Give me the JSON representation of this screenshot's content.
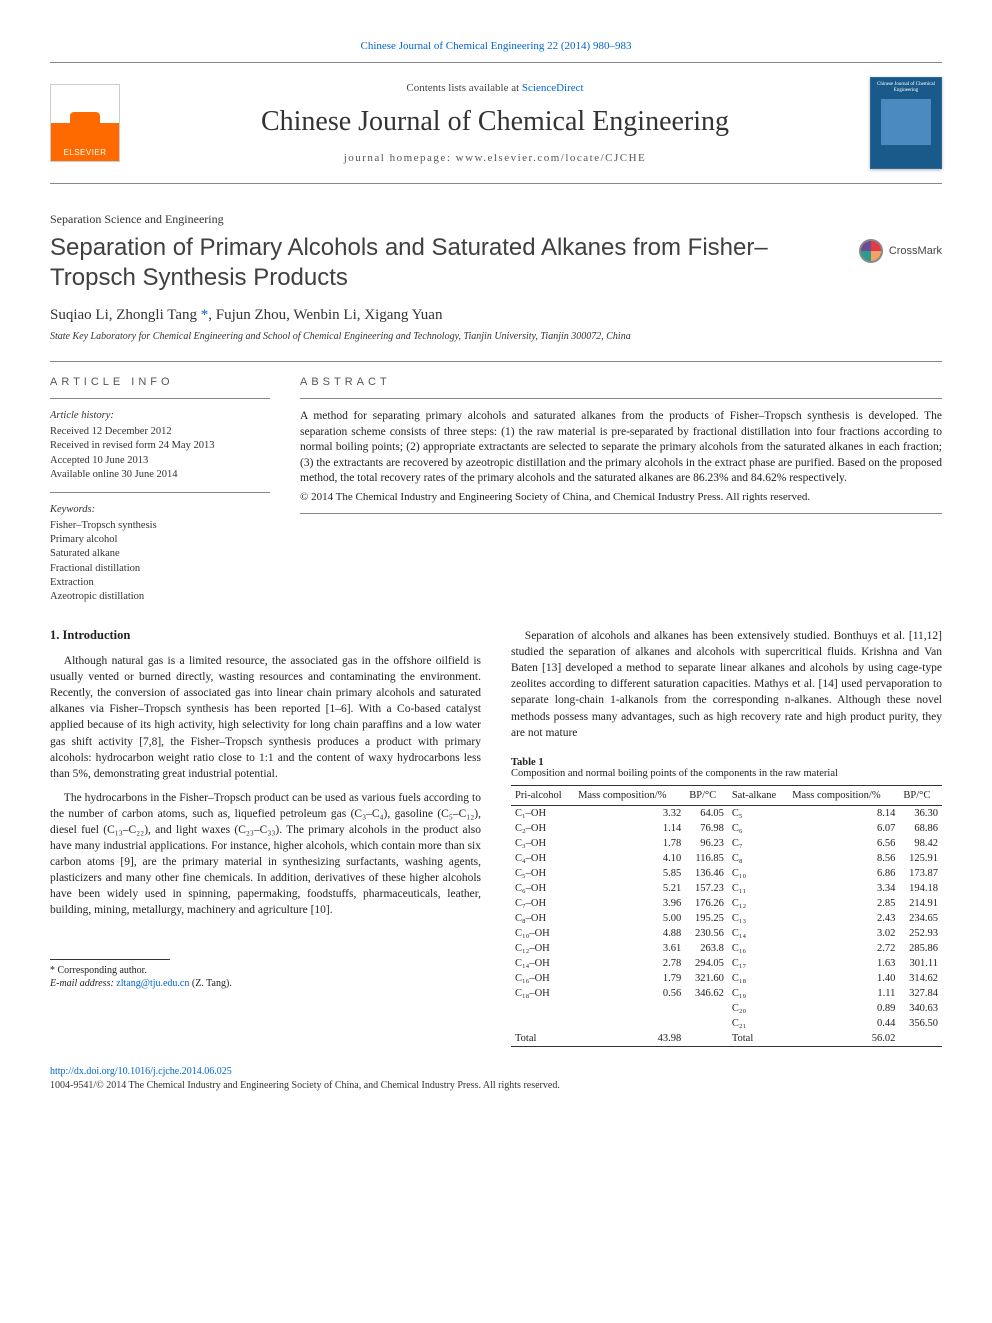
{
  "top_link": {
    "text": "Chinese Journal of Chemical Engineering 22 (2014) 980–983",
    "href": "#"
  },
  "masthead": {
    "publisher": "ELSEVIER",
    "contents_prefix": "Contents lists available at ",
    "contents_link": "ScienceDirect",
    "journal_name": "Chinese Journal of Chemical Engineering",
    "homepage_prefix": "journal homepage: ",
    "homepage": "www.elsevier.com/locate/CJCHE"
  },
  "section_label": "Separation Science and Engineering",
  "article_title": "Separation of Primary Alcohols and Saturated Alkanes from Fisher–Tropsch Synthesis Products",
  "crossmark_label": "CrossMark",
  "authors": {
    "list": "Suqiao Li, Zhongli Tang ",
    "corr_marker": "*",
    "rest": ", Fujun Zhou, Wenbin Li, Xigang Yuan"
  },
  "affiliation": "State Key Laboratory for Chemical Engineering and School of Chemical Engineering and Technology, Tianjin University, Tianjin 300072, China",
  "info_heading": "ARTICLE INFO",
  "abstract_heading": "ABSTRACT",
  "article_history_heading": "Article history:",
  "history": [
    "Received 12 December 2012",
    "Received in revised form 24 May 2013",
    "Accepted 10 June 2013",
    "Available online 30 June 2014"
  ],
  "keywords_heading": "Keywords:",
  "keywords": [
    "Fisher–Tropsch synthesis",
    "Primary alcohol",
    "Saturated alkane",
    "Fractional distillation",
    "Extraction",
    "Azeotropic distillation"
  ],
  "abstract_text": "A method for separating primary alcohols and saturated alkanes from the products of Fisher–Tropsch synthesis is developed. The separation scheme consists of three steps: (1) the raw material is pre-separated by fractional distillation into four fractions according to normal boiling points; (2) appropriate extractants are selected to separate the primary alcohols from the saturated alkanes in each fraction; (3) the extractants are recovered by azeotropic distillation and the primary alcohols in the extract phase are purified. Based on the proposed method, the total recovery rates of the primary alcohols and the saturated alkanes are 86.23% and 84.62% respectively.",
  "abstract_copyright": "© 2014 The Chemical Industry and Engineering Society of China, and Chemical Industry Press. All rights reserved.",
  "intro_heading": "1. Introduction",
  "para1": "Although natural gas is a limited resource, the associated gas in the offshore oilfield is usually vented or burned directly, wasting resources and contaminating the environment. Recently, the conversion of associated gas into linear chain primary alcohols and saturated alkanes via Fisher–Tropsch synthesis has been reported [1–6]. With a Co-based catalyst applied because of its high activity, high selectivity for long chain paraffins and a low water gas shift activity [7,8], the Fisher–Tropsch synthesis produces a product with primary alcohols: hydrocarbon weight ratio close to 1:1 and the content of waxy hydrocarbons less than 5%, demonstrating great industrial potential.",
  "para2": "The hydrocarbons in the Fisher–Tropsch product can be used as various fuels according to the number of carbon atoms, such as, liquefied petroleum gas (C₃–C₄), gasoline (C₅–C₁₂), diesel fuel (C₁₃–C₂₂), and light waxes (C₂₃–C₃₃). The primary alcohols in the product also have many industrial applications. For instance, higher alcohols, which contain more than six carbon atoms [9], are the primary material in synthesizing surfactants, washing agents, plasticizers and many other fine chemicals. In addition, derivatives of these higher alcohols have been widely used in spinning, papermaking, foodstuffs, pharmaceuticals, leather, building, mining, metallurgy, machinery and agriculture [10].",
  "para3a": "Separation of alcohols and alkanes has been extensively studied. Bonthuys et al. [11,12] studied the separation of alkanes and alcohols with supercritical fluids. Krishna and Van Baten [13] developed a method to separate linear alkanes and alcohols by using cage-type zeolites according to different saturation capacities. Mathys et al. [14] used pervaporation to separate long-chain 1-alkanols from the corresponding n-alkanes. Although these novel methods possess many advantages, such as high recovery rate and high product purity, they are not mature",
  "table1": {
    "label": "Table 1",
    "caption": "Composition and normal boiling points of the components in the raw material",
    "headers": [
      "Pri-alcohol",
      "Mass composition/%",
      "BP/°C",
      "Sat-alkane",
      "Mass composition/%",
      "BP/°C"
    ],
    "rows": [
      [
        "C₁–OH",
        "3.32",
        "64.05",
        "C₅",
        "8.14",
        "36.30"
      ],
      [
        "C₂–OH",
        "1.14",
        "76.98",
        "C₆",
        "6.07",
        "68.86"
      ],
      [
        "C₃–OH",
        "1.78",
        "96.23",
        "C₇",
        "6.56",
        "98.42"
      ],
      [
        "C₄–OH",
        "4.10",
        "116.85",
        "C₈",
        "8.56",
        "125.91"
      ],
      [
        "C₅–OH",
        "5.85",
        "136.46",
        "C₁₀",
        "6.86",
        "173.87"
      ],
      [
        "C₆–OH",
        "5.21",
        "157.23",
        "C₁₁",
        "3.34",
        "194.18"
      ],
      [
        "C₇–OH",
        "3.96",
        "176.26",
        "C₁₂",
        "2.85",
        "214.91"
      ],
      [
        "C₈–OH",
        "5.00",
        "195.25",
        "C₁₃",
        "2.43",
        "234.65"
      ],
      [
        "C₁₀–OH",
        "4.88",
        "230.56",
        "C₁₄",
        "3.02",
        "252.93"
      ],
      [
        "C₁₂–OH",
        "3.61",
        "263.8",
        "C₁₆",
        "2.72",
        "285.86"
      ],
      [
        "C₁₄–OH",
        "2.78",
        "294.05",
        "C₁₇",
        "1.63",
        "301.11"
      ],
      [
        "C₁₆–OH",
        "1.79",
        "321.60",
        "C₁₈",
        "1.40",
        "314.62"
      ],
      [
        "C₁₈–OH",
        "0.56",
        "346.62",
        "C₁₉",
        "1.11",
        "327.84"
      ],
      [
        "",
        "",
        "",
        "C₂₀",
        "0.89",
        "340.63"
      ],
      [
        "",
        "",
        "",
        "C₂₁",
        "0.44",
        "356.50"
      ],
      [
        "Total",
        "43.98",
        "",
        "Total",
        "56.02",
        ""
      ]
    ]
  },
  "footnote_corr": "* Corresponding author.",
  "footnote_email_label": "E-mail address: ",
  "footnote_email": "zltang@tju.edu.cn",
  "footnote_email_person": " (Z. Tang).",
  "doi": "http://dx.doi.org/10.1016/j.cjche.2014.06.025",
  "issn_line": "1004-9541/© 2014 The Chemical Industry and Engineering Society of China, and Chemical Industry Press. All rights reserved.",
  "colors": {
    "link": "#0066cc",
    "rule": "#888888",
    "text": "#222222",
    "elsevier_orange": "#ff6a00",
    "cover_bg": "#1a5a8a"
  },
  "fonts": {
    "body": "Georgia, Times New Roman, serif",
    "title": "Gill Sans, Trebuchet MS, Arial, sans-serif",
    "body_size_pt": 9,
    "title_size_pt": 18,
    "journal_size_pt": 21
  }
}
